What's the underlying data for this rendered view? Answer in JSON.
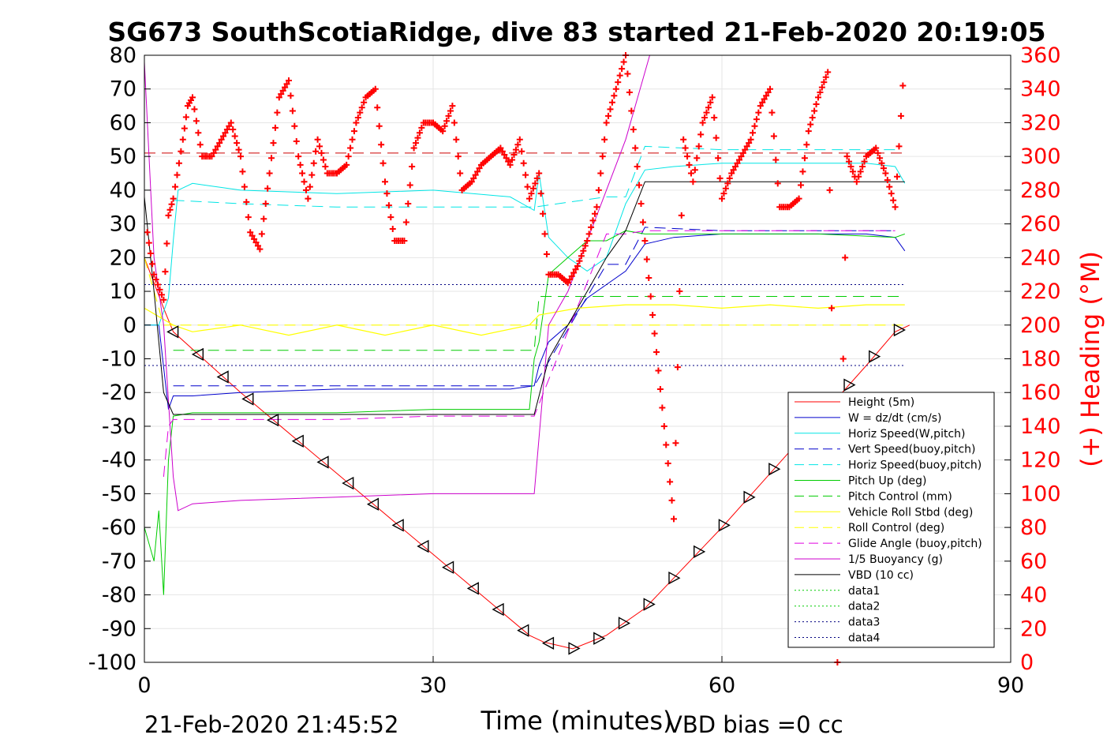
{
  "chart_data": {
    "type": "line",
    "title": "SG673 SouthScotiaRidge, dive 83 started 21-Feb-2020 20:19:05",
    "xlabel": "Time (minutes)",
    "ylabel_left": "",
    "ylabel_right": "(+) Heading (°M)",
    "xlim": [
      0,
      90
    ],
    "ylim_left": [
      -100,
      80
    ],
    "ylim_right": [
      0,
      360
    ],
    "x_ticks": [
      "0",
      "30",
      "60",
      "90"
    ],
    "x_tick_values": [
      0,
      30,
      60,
      90
    ],
    "y_ticks_left": [
      "80",
      "70",
      "60",
      "50",
      "40",
      "30",
      "20",
      "10",
      "0",
      "-10",
      "-20",
      "-30",
      "-40",
      "-50",
      "-60",
      "-70",
      "-80",
      "-90",
      "-100"
    ],
    "y_ticks_right": [
      "360",
      "340",
      "320",
      "300",
      "280",
      "260",
      "240",
      "220",
      "200",
      "180",
      "160",
      "140",
      "120",
      "100",
      "80",
      "60",
      "40",
      "20",
      "0"
    ],
    "grid": true,
    "legend_position": "bottom-right",
    "footer_left": "21-Feb-2020 21:45:52",
    "footer_right": "VBD bias =0 cc",
    "colors": {
      "height": "#ff0000",
      "w": "#0000cc",
      "horiz_speed": "#00e5e5",
      "pitch": "#00cc00",
      "roll": "#ffff00",
      "glide": "#e000e0",
      "buoyancy": "#cc00cc",
      "vbd": "#000000",
      "heading": "#ff0000"
    },
    "series": [
      {
        "name": "Height (5m)",
        "key": "height",
        "x": [
          0,
          2,
          3,
          10,
          20,
          30,
          40,
          41.5,
          44.5,
          48,
          52,
          55,
          60,
          65,
          70,
          75,
          78,
          79.5
        ],
        "y": [
          20,
          5,
          -2,
          -20,
          -44,
          -68,
          -92,
          -94,
          -96,
          -92,
          -84,
          -75,
          -60,
          -44,
          -28,
          -12,
          -2,
          0
        ]
      },
      {
        "name": "W = dz/dt (cm/s)",
        "key": "w",
        "x": [
          0,
          1.5,
          2.5,
          3,
          5,
          10,
          20,
          30,
          38,
          40.5,
          41,
          42,
          44,
          46,
          48,
          50,
          52,
          55,
          60,
          65,
          70,
          75,
          78,
          79
        ],
        "y": [
          0,
          0,
          -25,
          -21,
          -21,
          -20,
          -19,
          -19,
          -19,
          -18,
          -12,
          -5,
          0,
          8,
          12,
          16,
          24,
          26,
          27,
          27,
          27,
          27,
          26,
          22
        ]
      },
      {
        "name": "Horiz Speed(W,pitch)",
        "key": "horiz_speed",
        "x": [
          0,
          1.5,
          2.5,
          3,
          3.5,
          5,
          10,
          20,
          30,
          38,
          40.5,
          41,
          42,
          44,
          46,
          48,
          50,
          52,
          55,
          60,
          65,
          70,
          75,
          78,
          79
        ],
        "y": [
          0,
          0,
          8,
          25,
          40,
          42,
          40,
          39,
          40,
          38,
          34,
          45,
          26,
          20,
          16,
          20,
          36,
          46,
          47,
          48,
          48,
          48,
          48,
          47,
          42
        ]
      },
      {
        "name": "Vert Speed(buoy,pitch)",
        "key": "vert_speed_buoy",
        "dashed": true,
        "x": [
          3,
          10,
          20,
          30,
          40,
          40.5,
          48,
          50,
          52,
          60,
          70,
          78
        ],
        "y": [
          -18,
          -18,
          -18,
          -18,
          -18,
          -18,
          18,
          18,
          29,
          28,
          28,
          28
        ]
      },
      {
        "name": "Horiz Speed(buoy,pitch)",
        "key": "horiz_speed_buoy",
        "dashed": true,
        "x": [
          3,
          10,
          20,
          30,
          40,
          40.5,
          48,
          50,
          52,
          60,
          70,
          78
        ],
        "y": [
          37,
          36,
          35,
          35,
          35,
          35,
          38,
          38,
          53,
          52,
          52,
          52
        ]
      },
      {
        "name": "Pitch Up (deg)",
        "key": "pitch",
        "x": [
          0,
          1,
          1.5,
          2,
          2.5,
          3,
          5,
          10,
          20,
          30,
          40,
          40.5,
          41,
          42,
          44,
          46,
          48,
          50,
          52,
          60,
          70,
          78,
          79
        ],
        "y": [
          -60,
          -70,
          -55,
          -80,
          -40,
          -27,
          -26,
          -26,
          -26,
          -25,
          -25,
          -10,
          -5,
          15,
          20,
          25,
          25,
          28,
          27,
          27,
          27,
          26,
          27
        ]
      },
      {
        "name": "Pitch Control (mm)",
        "key": "pitch_control",
        "dashed": true,
        "x": [
          3,
          40.5,
          41,
          79
        ],
        "y": [
          -7.5,
          -7.5,
          8.5,
          8.5
        ]
      },
      {
        "name": "Vehicle Roll Stbd (deg)",
        "key": "roll",
        "x": [
          0,
          3,
          5,
          10,
          15,
          20,
          25,
          30,
          35,
          40,
          41,
          45,
          50,
          55,
          60,
          65,
          70,
          75,
          79
        ],
        "y": [
          5,
          0,
          -2,
          0,
          -3,
          0,
          -3,
          0,
          -3,
          0,
          3,
          5,
          6,
          6,
          5,
          6,
          5,
          6,
          6
        ]
      },
      {
        "name": "Roll Control (deg)",
        "key": "roll_control",
        "dashed": true,
        "x": [
          0,
          2,
          3,
          10,
          20,
          30,
          40,
          41,
          50,
          60,
          70,
          79
        ],
        "y": [
          20,
          0,
          0,
          0,
          0,
          0,
          0,
          0,
          0,
          0,
          0,
          0
        ]
      },
      {
        "name": "Glide Angle (buoy,pitch)",
        "key": "glide",
        "dashed": true,
        "x": [
          2,
          2.5,
          3,
          5,
          10,
          20,
          30,
          40,
          40.5,
          48,
          50,
          52,
          60,
          70,
          78
        ],
        "y": [
          -45,
          -30,
          -28,
          -28,
          -28,
          -28,
          -27,
          -27,
          -27,
          27,
          27,
          28,
          28,
          28,
          28
        ]
      },
      {
        "name": "1/5 Buoyancy (g)",
        "key": "buoyancy",
        "x": [
          0,
          1,
          2,
          3,
          3.5,
          5,
          10,
          20,
          30,
          40.5,
          42,
          44,
          50,
          52.5
        ],
        "y": [
          78,
          20,
          0,
          -45,
          -55,
          -53,
          -52,
          -51,
          -50,
          -50,
          0,
          10,
          55,
          80
        ]
      },
      {
        "name": "VBD (10 cc)",
        "key": "vbd",
        "x": [
          0,
          1,
          2,
          3,
          40.5,
          42,
          44,
          46,
          48,
          50,
          52,
          60,
          70,
          79
        ],
        "y": [
          38,
          10,
          -20,
          -26.5,
          -26.5,
          -10,
          0,
          10,
          20,
          28,
          42.5,
          42.5,
          42.5,
          42.5
        ]
      },
      {
        "name": "data1",
        "key": "data1",
        "dotted": true,
        "x": [],
        "y": []
      },
      {
        "name": "data2",
        "key": "data2",
        "dotted": true,
        "x": [],
        "y": []
      },
      {
        "name": "data3",
        "key": "data3",
        "dotted": true,
        "x": [
          0,
          79
        ],
        "y": [
          12,
          12
        ]
      },
      {
        "name": "data4",
        "key": "data4",
        "dotted": true,
        "x": [
          0,
          79
        ],
        "y": [
          -12,
          -12
        ]
      }
    ],
    "reference_lines": [
      {
        "key": "heading_target",
        "axis": "right",
        "value": 302,
        "dashed": true,
        "color": "#cc0000"
      }
    ],
    "heading": {
      "axis": "right",
      "x": [
        0.3,
        1,
        2,
        2.5,
        3,
        4,
        4.5,
        5,
        6,
        7,
        8,
        9,
        10,
        11,
        12,
        13,
        14,
        15,
        16,
        17,
        18,
        19,
        20,
        21,
        22,
        23,
        24,
        25,
        26,
        27,
        28,
        29,
        30,
        31,
        32,
        33,
        34,
        35,
        36,
        37,
        38,
        39,
        40,
        41,
        42,
        43,
        44,
        45,
        46,
        47,
        48,
        49,
        50,
        55,
        56,
        57,
        58,
        59,
        60,
        61,
        62,
        63,
        64,
        65,
        66,
        67,
        68,
        69,
        70,
        71,
        72,
        73,
        74,
        75,
        76,
        77,
        78,
        79
      ],
      "y": [
        255,
        230,
        215,
        265,
        275,
        310,
        330,
        335,
        300,
        300,
        310,
        320,
        300,
        255,
        245,
        290,
        335,
        345,
        300,
        275,
        310,
        290,
        290,
        295,
        320,
        335,
        340,
        285,
        250,
        250,
        305,
        320,
        320,
        315,
        330,
        280,
        285,
        295,
        300,
        305,
        295,
        310,
        275,
        290,
        230,
        230,
        225,
        235,
        250,
        270,
        320,
        340,
        360,
        85,
        310,
        285,
        320,
        335,
        275,
        290,
        300,
        310,
        330,
        340,
        270,
        270,
        275,
        315,
        335,
        350,
        0,
        300,
        285,
        300,
        305,
        290,
        270,
        360
      ]
    }
  }
}
